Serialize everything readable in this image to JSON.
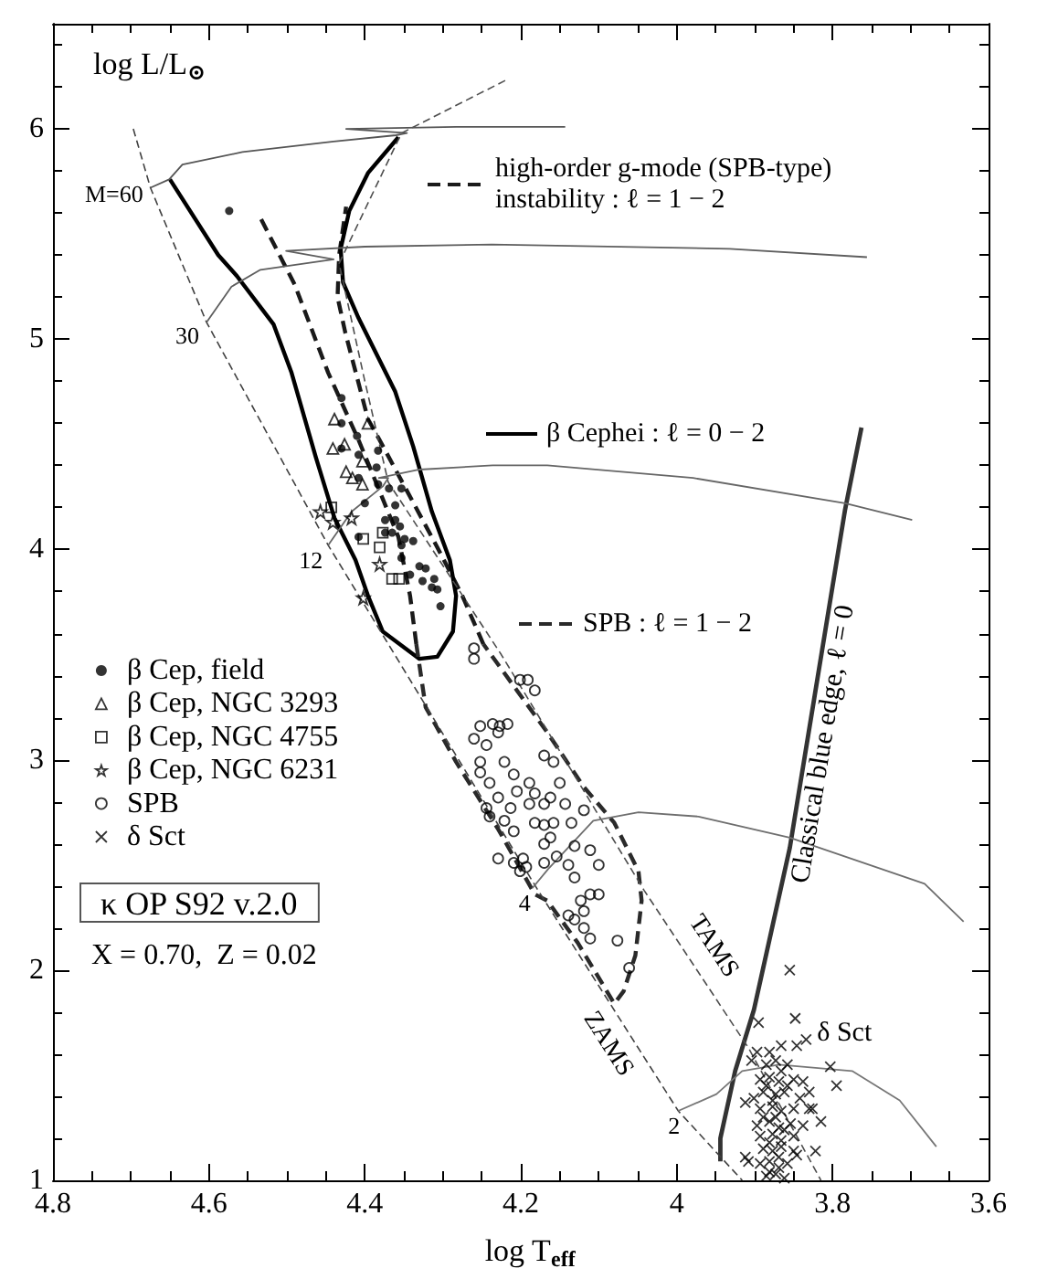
{
  "chart_data": {
    "type": "line",
    "xlabel": "log T$_{eff}$",
    "ylabel": "log L/L$_{⊙}$",
    "xlim": [
      4.8,
      3.6
    ],
    "ylim": [
      1,
      6.5
    ],
    "xticks": [
      4.8,
      {
        "value": 4.75,
        "label": null
      },
      {
        "value": 4.7,
        "label": null
      },
      {
        "value": 4.65,
        "label": null
      },
      4.6,
      {
        "value": 4.55,
        "label": null
      },
      {
        "value": 4.5,
        "label": null
      },
      {
        "value": 4.45,
        "label": null
      },
      4.4,
      {
        "value": 4.35,
        "label": null
      },
      {
        "value": 4.3,
        "label": null
      },
      {
        "value": 4.25,
        "label": null
      },
      4.2,
      {
        "value": 4.15,
        "label": null
      },
      {
        "value": 4.1,
        "label": null
      },
      {
        "value": 4.05,
        "label": null
      },
      4,
      {
        "value": 3.95,
        "label": null
      },
      {
        "value": 3.9,
        "label": null
      },
      {
        "value": 3.85,
        "label": null
      },
      3.8,
      {
        "value": 3.75,
        "label": null
      },
      {
        "value": 3.7,
        "label": null
      },
      {
        "value": 3.65,
        "label": null
      },
      3.6
    ],
    "yticks": [
      1,
      {
        "value": 1.2,
        "label": null
      },
      {
        "value": 1.4,
        "label": null
      },
      {
        "value": 1.6,
        "label": null
      },
      {
        "value": 1.8,
        "label": null
      },
      2,
      {
        "value": 2.2,
        "label": null
      },
      {
        "value": 2.4,
        "label": null
      },
      {
        "value": 2.6,
        "label": null
      },
      {
        "value": 2.8,
        "label": null
      },
      3,
      {
        "value": 3.2,
        "label": null
      },
      {
        "value": 3.4,
        "label": null
      },
      {
        "value": 3.6,
        "label": null
      },
      {
        "value": 3.8,
        "label": null
      },
      4,
      {
        "value": 4.2,
        "label": null
      },
      {
        "value": 4.4,
        "label": null
      },
      {
        "value": 4.6,
        "label": null
      },
      {
        "value": 4.8,
        "label": null
      },
      5,
      {
        "value": 5.2,
        "label": null
      },
      {
        "value": 5.4,
        "label": null
      },
      {
        "value": 5.6,
        "label": null
      },
      {
        "value": 5.8,
        "label": null
      },
      6,
      {
        "value": 6.2,
        "label": null
      },
      {
        "value": 6.4,
        "label": null
      }
    ],
    "grid": false,
    "legend": "left",
    "marker": "none",
    "line_style": "solid",
    "annotations": [
      "κ OP S92 v.2.0",
      "X = 0.70,  Z = 0.02",
      {
        "text": "δ Sct",
        "x": 3.82,
        "y": 1.7
      }
    ],
    "series": [
      {
        "name": "β Cep, field",
        "type": "scatter",
        "marker": "circle",
        "color": "#000000",
        "x": [
          4.574,
          4.43,
          4.43,
          4.41,
          4.43,
          4.408,
          4.383,
          4.385,
          4.408,
          4.4,
          4.383,
          4.369,
          4.361,
          4.353,
          4.374,
          4.361,
          4.374,
          4.365,
          4.349,
          4.408,
          4.355,
          4.338,
          4.353,
          4.33,
          4.322,
          4.326,
          4.314,
          4.307,
          4.311,
          4.303,
          4.342,
          4.353
        ],
        "values": [
          5.61,
          4.72,
          4.6,
          4.54,
          4.48,
          4.45,
          4.47,
          4.39,
          4.34,
          4.22,
          4.31,
          4.29,
          4.21,
          4.29,
          4.14,
          4.14,
          4.08,
          4.08,
          4.05,
          4.06,
          4.11,
          4.04,
          3.96,
          3.92,
          3.91,
          3.85,
          3.82,
          3.81,
          3.86,
          3.73,
          3.88,
          4.02
        ]
      },
      {
        "name": "β Cep, NGC 3293",
        "type": "scatter",
        "marker": "triangle",
        "color": "#000000",
        "x": [
          4.439,
          4.441,
          4.426,
          4.396,
          4.403,
          4.424,
          4.416,
          4.403
        ],
        "values": [
          4.62,
          4.48,
          4.5,
          4.6,
          4.42,
          4.37,
          4.34,
          4.31
        ]
      },
      {
        "name": "β Cep, NGC 4755",
        "type": "scatter",
        "marker": "square",
        "color": "#000000",
        "x": [
          4.443,
          4.402,
          4.377,
          4.381,
          4.365,
          4.356
        ],
        "values": [
          4.2,
          4.05,
          4.08,
          4.01,
          3.86,
          3.86
        ]
      },
      {
        "name": "β Cep, NGC 6231",
        "type": "scatter",
        "marker": "star",
        "color": "#000000",
        "x": [
          4.457,
          4.441,
          4.417,
          4.381,
          4.402
        ],
        "values": [
          4.18,
          4.13,
          4.15,
          3.93,
          3.77
        ]
      },
      {
        "name": "SPB",
        "type": "scatter",
        "marker": "circle",
        "color": "#000000",
        "x": [
          4.26,
          4.26,
          4.201,
          4.191,
          4.182,
          4.252,
          4.236,
          4.227,
          4.217,
          4.26,
          4.229,
          4.244,
          4.17,
          4.252,
          4.221,
          4.252,
          4.209,
          4.189,
          4.24,
          4.205,
          4.182,
          4.229,
          4.244,
          4.213,
          4.189,
          4.17,
          4.182,
          4.221,
          4.24,
          4.17,
          4.209,
          4.17,
          4.229,
          4.209,
          4.197,
          4.193,
          4.17,
          4.201,
          4.158,
          4.15,
          4.162,
          4.143,
          4.119,
          4.158,
          4.135,
          4.162,
          4.131,
          4.111,
          4.154,
          4.139,
          4.1,
          4.131,
          4.123,
          4.111,
          4.1,
          4.139,
          4.131,
          4.119,
          4.119,
          4.111,
          4.076,
          4.061
        ],
        "values": [
          3.53,
          3.48,
          3.38,
          3.38,
          3.33,
          3.16,
          3.17,
          3.16,
          3.17,
          3.1,
          3.13,
          3.07,
          3.02,
          2.99,
          2.99,
          2.94,
          2.93,
          2.89,
          2.89,
          2.85,
          2.84,
          2.82,
          2.77,
          2.77,
          2.79,
          2.79,
          2.7,
          2.71,
          2.73,
          2.69,
          2.66,
          2.6,
          2.53,
          2.51,
          2.53,
          2.49,
          2.51,
          2.47,
          2.99,
          2.89,
          2.82,
          2.79,
          2.76,
          2.7,
          2.7,
          2.63,
          2.59,
          2.57,
          2.54,
          2.5,
          2.5,
          2.44,
          2.33,
          2.36,
          2.36,
          2.26,
          2.24,
          2.28,
          2.2,
          2.15,
          2.14,
          2.01
        ]
      },
      {
        "name": "δ Sct",
        "type": "scatter",
        "marker": "cross",
        "color": "#000000",
        "x": [
          3.855,
          3.895,
          3.848,
          3.834,
          3.803,
          3.795,
          3.83,
          3.815,
          3.912,
          3.908,
          3.846,
          3.897,
          3.881,
          3.866,
          3.846,
          3.904,
          3.885,
          3.873,
          3.858,
          3.893,
          3.881,
          3.869,
          3.85,
          3.838,
          3.901,
          3.889,
          3.873,
          3.862,
          3.842,
          3.83,
          3.893,
          3.877,
          3.866,
          3.85,
          3.826,
          3.897,
          3.881,
          3.869,
          3.854,
          3.838,
          3.893,
          3.877,
          3.866,
          3.85,
          3.912,
          3.889,
          3.877,
          3.866,
          3.85,
          3.822,
          3.893,
          3.881,
          3.869,
          3.858,
          3.885,
          3.873,
          3.862,
          3.885,
          3.873,
          3.881,
          3.862,
          3.877,
          3.889,
          3.869,
          3.858,
          3.881,
          3.866
        ],
        "values": [
          2.0,
          1.75,
          1.77,
          1.67,
          1.54,
          1.45,
          1.34,
          1.28,
          1.37,
          1.09,
          1.12,
          1.61,
          1.61,
          1.64,
          1.64,
          1.57,
          1.55,
          1.57,
          1.55,
          1.48,
          1.49,
          1.47,
          1.48,
          1.47,
          1.39,
          1.42,
          1.41,
          1.42,
          1.39,
          1.42,
          1.34,
          1.35,
          1.33,
          1.34,
          1.34,
          1.26,
          1.28,
          1.25,
          1.27,
          1.26,
          1.21,
          1.22,
          1.19,
          1.21,
          1.11,
          1.15,
          1.14,
          1.16,
          1.14,
          1.14,
          1.08,
          1.09,
          1.06,
          1.08,
          1.02,
          1.03,
          1.01,
          1.45,
          1.3,
          1.18,
          1.24,
          1.38,
          1.3,
          1.11,
          1.45,
          1.04,
          1.52
        ]
      },
      {
        "name": "high-order g-mode (SPB-type) instability : ℓ = 1 − 2",
        "line_style": "dashed",
        "color": "#1a1a1a",
        "x": [
          4.533,
          4.49,
          4.447,
          4.408,
          4.357,
          4.342,
          4.334,
          null,
          4.248,
          4.275,
          4.307,
          4.381,
          4.396,
          4.408,
          4.425,
          4.435,
          4.433,
          4.424
        ],
        "values": [
          5.57,
          5.26,
          4.84,
          4.52,
          4.06,
          3.78,
          3.55,
          null,
          3.55,
          3.78,
          4.01,
          4.52,
          4.62,
          4.79,
          5.03,
          5.2,
          5.4,
          5.63
        ]
      },
      {
        "name": "β Cephei : ℓ = 0 − 2",
        "color": "#000000",
        "x": [
          4.65,
          4.588,
          4.564,
          4.517,
          4.494,
          4.463,
          4.439,
          4.412,
          4.396,
          4.377,
          4.33,
          4.307,
          4.287,
          4.283,
          4.291,
          4.314,
          4.338,
          4.361,
          4.408,
          4.428,
          4.431,
          4.42,
          4.396,
          4.357
        ],
        "values": [
          5.76,
          5.4,
          5.3,
          5.07,
          4.84,
          4.44,
          4.15,
          3.95,
          3.78,
          3.61,
          3.48,
          3.49,
          3.61,
          3.78,
          3.95,
          4.18,
          4.49,
          4.75,
          5.1,
          5.27,
          5.43,
          5.61,
          5.79,
          5.96
        ]
      },
      {
        "name": "SPB : ℓ = 1 − 2",
        "line_style": "dashed",
        "color": "#2a2a2a",
        "x": [
          4.334,
          4.322,
          4.283,
          4.229,
          4.182,
          4.166,
          4.127,
          4.08,
          4.068,
          4.053,
          4.045,
          4.049,
          4.08,
          4.119,
          4.166,
          4.205,
          4.248
        ],
        "values": [
          3.55,
          3.25,
          2.99,
          2.67,
          2.36,
          2.33,
          2.13,
          1.84,
          1.9,
          2.07,
          2.33,
          2.47,
          2.7,
          2.87,
          3.13,
          3.33,
          3.55
        ]
      },
      {
        "name": "Classical blue edge, ℓ = 0",
        "color": "#333333",
        "x": [
          3.944,
          3.944,
          3.925,
          3.901,
          3.855,
          3.784,
          3.763
        ],
        "values": [
          1.09,
          1.2,
          1.52,
          1.81,
          2.58,
          4.19,
          4.58
        ]
      },
      {
        "name": "ZAMS",
        "line_style": "dashed",
        "color": "#404040",
        "x": [
          4.697,
          4.675,
          4.603,
          4.447,
          4.178,
          3.998,
          3.916
        ],
        "values": [
          6.0,
          5.72,
          5.08,
          4.02,
          2.38,
          1.33,
          1.0
        ]
      },
      {
        "name": "TAMS",
        "line_style": "dashed",
        "color": "#4d4d4d",
        "x": [
          4.22,
          4.353,
          4.433,
          4.4,
          4.37,
          4.225,
          4.042,
          3.908,
          3.815
        ],
        "values": [
          6.23,
          5.98,
          5.36,
          4.8,
          4.32,
          3.5,
          2.38,
          1.63,
          1.0
        ]
      },
      {
        "name": "M=60",
        "color": "#555555",
        "x": [
          4.675,
          4.651,
          4.634,
          4.557,
          4.44,
          4.36,
          4.346,
          4.424,
          4.283,
          4.143
        ],
        "values": [
          5.72,
          5.76,
          5.83,
          5.89,
          5.94,
          5.97,
          5.98,
          6.0,
          6.01,
          6.01
        ]
      },
      {
        "name": "30",
        "color": "#5e5e5e",
        "x": [
          4.603,
          4.571,
          4.534,
          4.44,
          4.501,
          4.4,
          4.237,
          3.932,
          3.756
        ],
        "values": [
          5.08,
          5.25,
          5.33,
          5.38,
          5.42,
          5.44,
          5.45,
          5.43,
          5.39
        ]
      },
      {
        "name": "12",
        "color": "#666666",
        "x": [
          4.447,
          4.417,
          4.377,
          4.37,
          4.382,
          4.33,
          4.236,
          4.166,
          3.979,
          3.784,
          3.698
        ],
        "values": [
          4.02,
          4.18,
          4.3,
          4.34,
          4.34,
          4.38,
          4.4,
          4.4,
          4.34,
          4.22,
          4.14
        ]
      },
      {
        "name": "4",
        "color": "#6e6e6e",
        "x": [
          4.185,
          4.165,
          4.107,
          4.049,
          3.972,
          3.855,
          3.682,
          3.632
        ],
        "values": [
          2.39,
          2.48,
          2.71,
          2.75,
          2.73,
          2.63,
          2.41,
          2.23
        ]
      },
      {
        "name": "2",
        "color": "#777777",
        "x": [
          3.998,
          3.949,
          3.916,
          3.869,
          3.775,
          3.714,
          3.667
        ],
        "values": [
          1.33,
          1.41,
          1.52,
          1.55,
          1.52,
          1.38,
          1.16
        ]
      }
    ]
  }
}
